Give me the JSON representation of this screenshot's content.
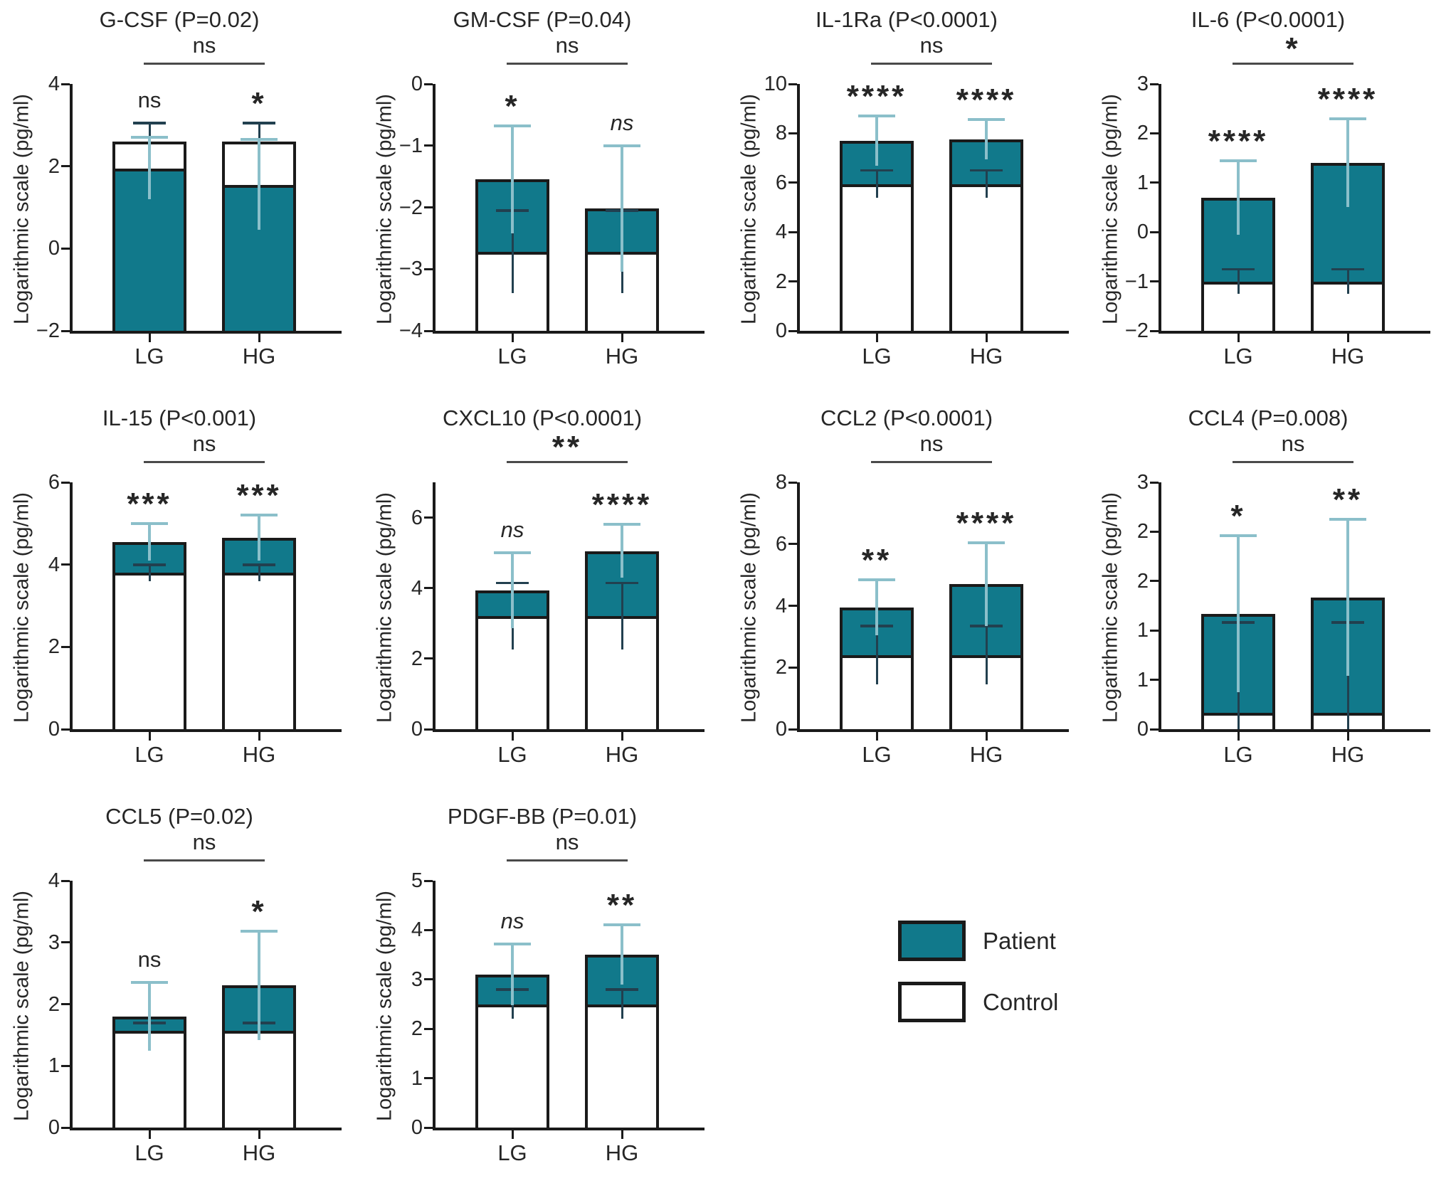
{
  "figure": {
    "kind": "multi-panel bar figure",
    "shared_y_axis_label": "Logarithmic scale (pg/ml)",
    "categories": [
      "LG",
      "HG"
    ]
  },
  "colors": {
    "patient_fill": "#11798B",
    "control_fill": "#FFFFFF",
    "bar_border": "#1A1A1A",
    "patient_whisker": "#8BBFCA",
    "control_whisker": "#22404F",
    "axis": "#1A1A1A",
    "bracket": "#4A4A4A",
    "text": "#262626"
  },
  "legend": {
    "items": [
      {
        "label": "Patient",
        "swatch": "patient-swatch",
        "color": "#11798B"
      },
      {
        "label": "Control",
        "swatch": "control-swatch",
        "color": "#FFFFFF"
      }
    ]
  },
  "chart_data": [
    {
      "key": "g-csf",
      "type": "bar",
      "title": "G-CSF (P=0.02)",
      "ylabel": "Logarithmic scale (pg/ml)",
      "categories": [
        "LG",
        "HG"
      ],
      "ylim": [
        -2,
        4
      ],
      "row": 0,
      "col": 0,
      "yticks": [
        {
          "v": 4,
          "label": "4"
        },
        {
          "v": 2,
          "label": "2"
        },
        {
          "v": 0,
          "label": "0"
        },
        {
          "v": -2,
          "label": "−2"
        }
      ],
      "series": [
        {
          "name": "Patient",
          "values": [
            1.95,
            1.55
          ],
          "err_top": [
            2.7,
            2.65
          ]
        },
        {
          "name": "Control",
          "values": [
            2.6,
            2.6
          ],
          "err_top": [
            3.05,
            3.05
          ]
        }
      ],
      "significance": {
        "per_bar": [
          {
            "text": "ns",
            "italic": false
          },
          {
            "text": "*",
            "italic": false
          }
        ],
        "bracket": {
          "text": "ns",
          "italic": false
        }
      }
    },
    {
      "key": "gm-csf",
      "type": "bar",
      "title": "GM-CSF (P=0.04)",
      "ylabel": "Logarithmic scale (pg/ml)",
      "categories": [
        "LG",
        "HG"
      ],
      "ylim": [
        -4,
        0
      ],
      "row": 0,
      "col": 1,
      "yticks": [
        {
          "v": 0,
          "label": "0"
        },
        {
          "v": -1,
          "label": "−1"
        },
        {
          "v": -2,
          "label": "−2"
        },
        {
          "v": -3,
          "label": "−3"
        },
        {
          "v": -4,
          "label": "−4"
        }
      ],
      "series": [
        {
          "name": "Patient",
          "values": [
            -1.55,
            -2.02
          ],
          "err_top": [
            -0.68,
            -1.0
          ]
        },
        {
          "name": "Control",
          "values": [
            -2.72,
            -2.72
          ],
          "err_top": [
            -2.05,
            -2.05
          ]
        }
      ],
      "significance": {
        "per_bar": [
          {
            "text": "*",
            "italic": false
          },
          {
            "text": "ns",
            "italic": true
          }
        ],
        "bracket": {
          "text": "ns",
          "italic": false
        }
      }
    },
    {
      "key": "il-1ra",
      "type": "bar",
      "title": "IL-1Ra (P<0.0001)",
      "ylabel": "Logarithmic scale (pg/ml)",
      "categories": [
        "LG",
        "HG"
      ],
      "ylim": [
        0,
        10
      ],
      "row": 0,
      "col": 2,
      "yticks": [
        {
          "v": 10,
          "label": "10"
        },
        {
          "v": 8,
          "label": "8"
        },
        {
          "v": 6,
          "label": "6"
        },
        {
          "v": 4,
          "label": "4"
        },
        {
          "v": 2,
          "label": "2"
        },
        {
          "v": 0,
          "label": "0"
        }
      ],
      "series": [
        {
          "name": "Patient",
          "values": [
            7.7,
            7.75
          ],
          "err_top": [
            8.7,
            8.55
          ]
        },
        {
          "name": "Control",
          "values": [
            5.95,
            5.95
          ],
          "err_top": [
            6.5,
            6.5
          ]
        }
      ],
      "significance": {
        "per_bar": [
          {
            "text": "****",
            "italic": false
          },
          {
            "text": "****",
            "italic": false
          }
        ],
        "bracket": {
          "text": "ns",
          "italic": false
        }
      }
    },
    {
      "key": "il-6",
      "type": "bar",
      "title": "IL-6 (P<0.0001)",
      "ylabel": "Logarithmic scale (pg/ml)",
      "categories": [
        "LG",
        "HG"
      ],
      "ylim": [
        -2,
        3
      ],
      "row": 0,
      "col": 3,
      "yticks": [
        {
          "v": 3,
          "label": "3"
        },
        {
          "v": 2,
          "label": "2"
        },
        {
          "v": 1,
          "label": "1"
        },
        {
          "v": 0,
          "label": "0"
        },
        {
          "v": -1,
          "label": "−1"
        },
        {
          "v": -2,
          "label": "−2"
        }
      ],
      "series": [
        {
          "name": "Patient",
          "values": [
            0.7,
            1.4
          ],
          "err_top": [
            1.45,
            2.3
          ]
        },
        {
          "name": "Control",
          "values": [
            -1.0,
            -1.0
          ],
          "err_top": [
            -0.75,
            -0.75
          ]
        }
      ],
      "significance": {
        "per_bar": [
          {
            "text": "****",
            "italic": false
          },
          {
            "text": "****",
            "italic": false
          }
        ],
        "bracket": {
          "text": "*",
          "italic": false
        }
      }
    },
    {
      "key": "il-15",
      "type": "bar",
      "title": "IL-15 (P<0.001)",
      "ylabel": "Logarithmic scale (pg/ml)",
      "categories": [
        "LG",
        "HG"
      ],
      "ylim": [
        0,
        6
      ],
      "row": 1,
      "col": 0,
      "yticks": [
        {
          "v": 6,
          "label": "6"
        },
        {
          "v": 4,
          "label": "4"
        },
        {
          "v": 2,
          "label": "2"
        },
        {
          "v": 0,
          "label": "0"
        }
      ],
      "series": [
        {
          "name": "Patient",
          "values": [
            4.55,
            4.65
          ],
          "err_top": [
            5.0,
            5.2
          ]
        },
        {
          "name": "Control",
          "values": [
            3.8,
            3.8
          ],
          "err_top": [
            4.0,
            4.0
          ]
        }
      ],
      "significance": {
        "per_bar": [
          {
            "text": "***",
            "italic": false
          },
          {
            "text": "***",
            "italic": false
          }
        ],
        "bracket": {
          "text": "ns",
          "italic": false
        }
      }
    },
    {
      "key": "cxcl10",
      "type": "bar",
      "title": "CXCL10 (P<0.0001)",
      "ylabel": "Logarithmic scale (pg/ml)",
      "categories": [
        "LG",
        "HG"
      ],
      "ylim": [
        0,
        7
      ],
      "row": 1,
      "col": 1,
      "yticks": [
        {
          "v": 6,
          "label": "6"
        },
        {
          "v": 4,
          "label": "4"
        },
        {
          "v": 2,
          "label": "2"
        },
        {
          "v": 0,
          "label": "0"
        }
      ],
      "series": [
        {
          "name": "Patient",
          "values": [
            3.93,
            5.05
          ],
          "err_top": [
            5.0,
            5.8
          ]
        },
        {
          "name": "Control",
          "values": [
            3.2,
            3.2
          ],
          "err_top": [
            4.15,
            4.15
          ]
        }
      ],
      "significance": {
        "per_bar": [
          {
            "text": "ns",
            "italic": true
          },
          {
            "text": "****",
            "italic": false
          }
        ],
        "bracket": {
          "text": "**",
          "italic": false
        }
      }
    },
    {
      "key": "ccl2",
      "type": "bar",
      "title": "CCL2 (P<0.0001)",
      "ylabel": "Logarithmic scale (pg/ml)",
      "categories": [
        "LG",
        "HG"
      ],
      "ylim": [
        0,
        8
      ],
      "row": 1,
      "col": 2,
      "yticks": [
        {
          "v": 8,
          "label": "8"
        },
        {
          "v": 6,
          "label": "6"
        },
        {
          "v": 4,
          "label": "4"
        },
        {
          "v": 2,
          "label": "2"
        },
        {
          "v": 0,
          "label": "0"
        }
      ],
      "series": [
        {
          "name": "Patient",
          "values": [
            3.95,
            4.7
          ],
          "err_top": [
            4.85,
            6.05
          ]
        },
        {
          "name": "Control",
          "values": [
            2.4,
            2.4
          ],
          "err_top": [
            3.35,
            3.35
          ]
        }
      ],
      "significance": {
        "per_bar": [
          {
            "text": "**",
            "italic": false
          },
          {
            "text": "****",
            "italic": false
          }
        ],
        "bracket": {
          "text": "ns",
          "italic": false
        }
      }
    },
    {
      "key": "ccl4",
      "type": "bar",
      "title": "CCL4 (P=0.008)",
      "ylabel": "Logarithmic scale (pg/ml)",
      "categories": [
        "LG",
        "HG"
      ],
      "ylim": [
        0,
        3
      ],
      "row": 1,
      "col": 3,
      "yticks": [
        {
          "v": 3,
          "label": "3"
        },
        {
          "v": 2.4,
          "label": "2"
        },
        {
          "v": 1.8,
          "label": "2"
        },
        {
          "v": 1.2,
          "label": "1"
        },
        {
          "v": 0.6,
          "label": "1"
        },
        {
          "v": 0,
          "label": "0"
        }
      ],
      "series": [
        {
          "name": "Patient",
          "values": [
            1.4,
            1.6
          ],
          "err_top": [
            2.35,
            2.55
          ]
        },
        {
          "name": "Control",
          "values": [
            0.2,
            0.2
          ],
          "err_top": [
            1.3,
            1.3
          ]
        }
      ],
      "significance": {
        "per_bar": [
          {
            "text": "*",
            "italic": false
          },
          {
            "text": "**",
            "italic": false
          }
        ],
        "bracket": {
          "text": "ns",
          "italic": false
        }
      }
    },
    {
      "key": "ccl5",
      "type": "bar",
      "title": "CCL5 (P=0.02)",
      "ylabel": "Logarithmic scale (pg/ml)",
      "categories": [
        "LG",
        "HG"
      ],
      "ylim": [
        0,
        4
      ],
      "row": 2,
      "col": 0,
      "yticks": [
        {
          "v": 4,
          "label": "4"
        },
        {
          "v": 3,
          "label": "3"
        },
        {
          "v": 2,
          "label": "2"
        },
        {
          "v": 1,
          "label": "1"
        },
        {
          "v": 0,
          "label": "0"
        }
      ],
      "series": [
        {
          "name": "Patient",
          "values": [
            1.8,
            2.3
          ],
          "err_top": [
            2.35,
            3.18
          ]
        },
        {
          "name": "Control",
          "values": [
            1.57,
            1.57
          ],
          "err_top": [
            1.7,
            1.7
          ]
        }
      ],
      "significance": {
        "per_bar": [
          {
            "text": "ns",
            "italic": false
          },
          {
            "text": "*",
            "italic": false
          }
        ],
        "bracket": {
          "text": "ns",
          "italic": false
        }
      }
    },
    {
      "key": "pdgf-bb",
      "type": "bar",
      "title": "PDGF-BB (P=0.01)",
      "ylabel": "Logarithmic scale (pg/ml)",
      "categories": [
        "LG",
        "HG"
      ],
      "ylim": [
        0,
        5
      ],
      "row": 2,
      "col": 1,
      "yticks": [
        {
          "v": 5,
          "label": "5"
        },
        {
          "v": 4,
          "label": "4"
        },
        {
          "v": 3,
          "label": "3"
        },
        {
          "v": 2,
          "label": "2"
        },
        {
          "v": 1,
          "label": "1"
        },
        {
          "v": 0,
          "label": "0"
        }
      ],
      "series": [
        {
          "name": "Patient",
          "values": [
            3.1,
            3.5
          ],
          "err_top": [
            3.72,
            4.1
          ]
        },
        {
          "name": "Control",
          "values": [
            2.5,
            2.5
          ],
          "err_top": [
            2.8,
            2.8
          ]
        }
      ],
      "significance": {
        "per_bar": [
          {
            "text": "ns",
            "italic": true
          },
          {
            "text": "**",
            "italic": false
          }
        ],
        "bracket": {
          "text": "ns",
          "italic": false
        }
      }
    }
  ]
}
